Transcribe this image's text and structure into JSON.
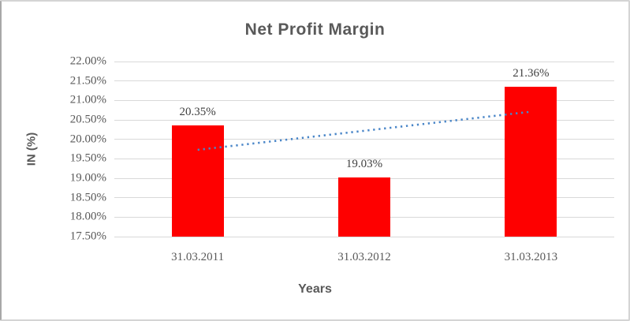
{
  "chart_data": {
    "type": "bar",
    "title": "Net Profit Margin",
    "xlabel": "Years",
    "ylabel": "IN (%)",
    "categories": [
      "31.03.2011",
      "31.03.2012",
      "31.03.2013"
    ],
    "values": [
      20.35,
      19.03,
      21.36
    ],
    "data_labels": [
      "20.35%",
      "19.03%",
      "21.36%"
    ],
    "ylim": [
      17.5,
      22.0
    ],
    "ytick_step": 0.5,
    "ytick_labels": [
      "22.00%",
      "21.50%",
      "21.00%",
      "20.50%",
      "20.00%",
      "19.50%",
      "19.00%",
      "18.50%",
      "18.00%",
      "17.50%"
    ],
    "grid": true,
    "legend": false,
    "trendline": {
      "type": "linear",
      "style": "dotted",
      "start_value": 19.73,
      "end_value": 20.71
    },
    "colors": {
      "bar": "#fe0000",
      "trendline": "#4a86c8",
      "gridline": "#d9d9d9",
      "axis_text": "#595959",
      "title_text": "#595959",
      "data_label_text": "#404040"
    }
  }
}
